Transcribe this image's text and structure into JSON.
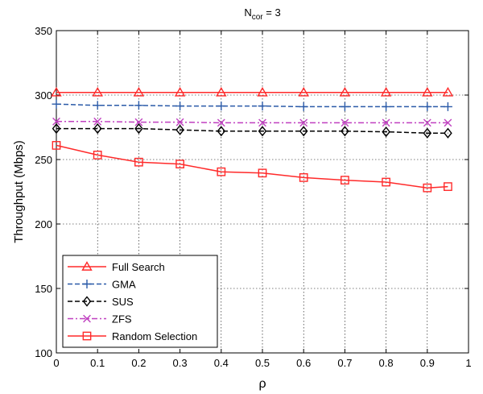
{
  "chart_data": {
    "type": "line",
    "title_main": "N",
    "title_sub": "cor",
    "title_rest": " = 3",
    "xlabel": "ρ",
    "ylabel": "Throughput (Mbps)",
    "xlim": [
      0,
      1
    ],
    "ylim": [
      100,
      350
    ],
    "xticks": [
      0,
      0.1,
      0.2,
      0.3,
      0.4,
      0.5,
      0.6,
      0.7,
      0.8,
      0.9,
      1
    ],
    "xtick_labels": [
      "0",
      "0.1",
      "0.2",
      "0.3",
      "0.4",
      "0.5",
      "0.6",
      "0.7",
      "0.8",
      "0.9",
      "1"
    ],
    "yticks": [
      100,
      150,
      200,
      250,
      300,
      350
    ],
    "ytick_labels": [
      "100",
      "150",
      "200",
      "250",
      "300",
      "350"
    ],
    "grid": true,
    "legend_position": "bottom-left",
    "x": [
      0,
      0.1,
      0.2,
      0.3,
      0.4,
      0.5,
      0.6,
      0.7,
      0.8,
      0.9,
      0.95
    ],
    "series": [
      {
        "name": "Full Search",
        "color": "#ff2a2a",
        "dash": "solid",
        "marker": "triangle",
        "values": [
          302,
          302,
          302,
          302,
          302,
          302,
          302,
          302,
          302,
          302,
          302
        ]
      },
      {
        "name": "GMA",
        "color": "#2a5aa8",
        "dash": "dashed",
        "marker": "plus",
        "values": [
          293,
          292,
          292,
          291.5,
          291.5,
          291.5,
          291,
          291,
          291,
          291,
          291
        ]
      },
      {
        "name": "SUS",
        "color": "#000000",
        "dash": "dashed",
        "marker": "diamond",
        "values": [
          274,
          274,
          274,
          273,
          272,
          272,
          272,
          272,
          271.5,
          270.5,
          270.5
        ]
      },
      {
        "name": "ZFS",
        "color": "#c040c0",
        "dash": "dashdot",
        "marker": "x",
        "values": [
          279.5,
          279.5,
          279,
          279,
          278.5,
          278.5,
          278.5,
          278.5,
          278.5,
          278.5,
          278.5
        ]
      },
      {
        "name": "Random Selection",
        "color": "#ff2a2a",
        "dash": "solid",
        "marker": "square",
        "values": [
          261,
          253.5,
          248,
          246.5,
          240.5,
          239.5,
          236,
          234,
          232.5,
          228,
          229
        ]
      }
    ]
  }
}
